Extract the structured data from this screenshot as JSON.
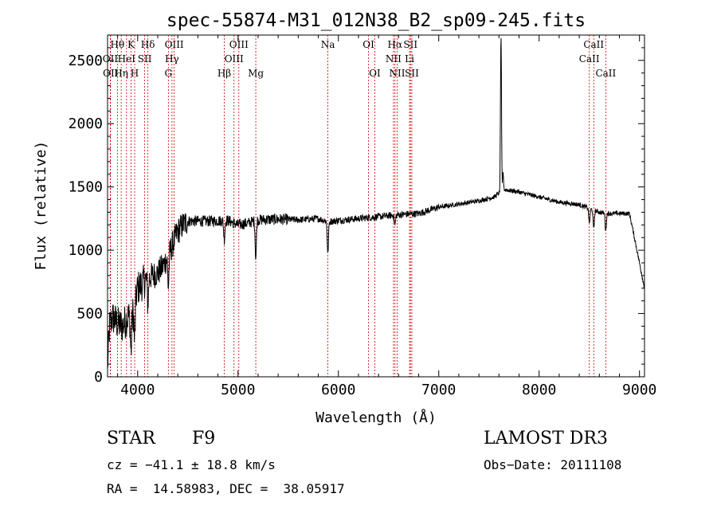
{
  "chart_data": {
    "type": "line",
    "title": "spec-55874-M31_012N38_B2_sp09-245.fits",
    "xlabel": "Wavelength (Å)",
    "ylabel": "Flux (relative)",
    "xlim": [
      3700,
      9050
    ],
    "ylim": [
      0,
      2700
    ],
    "xticks": [
      4000,
      5000,
      6000,
      7000,
      8000,
      9000
    ],
    "yticks": [
      0,
      500,
      1000,
      1500,
      2000,
      2500
    ],
    "xtick_labels": [
      "4000",
      "5000",
      "6000",
      "7000",
      "8000",
      "9000"
    ],
    "ytick_labels": [
      "0",
      "500",
      "1000",
      "1500",
      "2000",
      "2500"
    ],
    "grid": false,
    "line_color": "#000000",
    "marker_color": "#cc0000",
    "lines": [
      {
        "label": "Hθ",
        "x": 3798,
        "row": 0
      },
      {
        "label": "K",
        "x": 3934,
        "row": 0
      },
      {
        "label": "Hδ",
        "x": 4102,
        "row": 0
      },
      {
        "label": "OIII",
        "x": 4364,
        "row": 0
      },
      {
        "label": "OIII",
        "x": 5008,
        "row": 0
      },
      {
        "label": "OI",
        "x": 6300,
        "row": 0
      },
      {
        "label": "Hα",
        "x": 6564,
        "row": 0
      },
      {
        "label": "SII",
        "x": 6718,
        "row": 0
      },
      {
        "label": "CaII",
        "x": 8544,
        "row": 0
      },
      {
        "label": "OII",
        "x": 3727,
        "row": 1
      },
      {
        "label": "HeI",
        "x": 3889,
        "row": 1
      },
      {
        "label": "SII",
        "x": 4070,
        "row": 1
      },
      {
        "label": "Hγ",
        "x": 4342,
        "row": 1
      },
      {
        "label": "OIII",
        "x": 4960,
        "row": 1
      },
      {
        "label": "NII",
        "x": 6549,
        "row": 1
      },
      {
        "label": "Li",
        "x": 6709,
        "row": 1
      },
      {
        "label": "CaII",
        "x": 8500,
        "row": 1
      },
      {
        "label": "OII",
        "x": 3730,
        "row": 2
      },
      {
        "label": "Hη",
        "x": 3836,
        "row": 2
      },
      {
        "label": "H",
        "x": 3970,
        "row": 2
      },
      {
        "label": "G",
        "x": 4306,
        "row": 2
      },
      {
        "label": "Hβ",
        "x": 4863,
        "row": 2
      },
      {
        "label": "Mg",
        "x": 5177,
        "row": 2
      },
      {
        "label": "Na",
        "x": 5895,
        "row": 0
      },
      {
        "label": "OI",
        "x": 6363,
        "row": 2
      },
      {
        "label": "NII",
        "x": 6585,
        "row": 2
      },
      {
        "label": "SII",
        "x": 6732,
        "row": 2
      },
      {
        "label": "CaII",
        "x": 8664,
        "row": 2
      }
    ],
    "spectrum_anchors": [
      [
        3700,
        80
      ],
      [
        3720,
        400
      ],
      [
        3750,
        470
      ],
      [
        3800,
        420
      ],
      [
        3850,
        400
      ],
      [
        3900,
        470
      ],
      [
        3950,
        500
      ],
      [
        4000,
        700
      ],
      [
        4050,
        740
      ],
      [
        4100,
        780
      ],
      [
        4150,
        800
      ],
      [
        4200,
        820
      ],
      [
        4250,
        870
      ],
      [
        4300,
        950
      ],
      [
        4350,
        1050
      ],
      [
        4400,
        1150
      ],
      [
        4450,
        1200
      ],
      [
        4500,
        1230
      ],
      [
        4700,
        1230
      ],
      [
        4900,
        1235
      ],
      [
        5000,
        1200
      ],
      [
        5100,
        1215
      ],
      [
        5200,
        1240
      ],
      [
        5400,
        1245
      ],
      [
        5600,
        1240
      ],
      [
        5800,
        1250
      ],
      [
        5900,
        1225
      ],
      [
        6000,
        1235
      ],
      [
        6200,
        1250
      ],
      [
        6400,
        1265
      ],
      [
        6600,
        1280
      ],
      [
        6800,
        1290
      ],
      [
        7000,
        1340
      ],
      [
        7200,
        1365
      ],
      [
        7400,
        1390
      ],
      [
        7550,
        1420
      ],
      [
        7650,
        1480
      ],
      [
        7800,
        1460
      ],
      [
        8000,
        1420
      ],
      [
        8200,
        1380
      ],
      [
        8400,
        1360
      ],
      [
        8500,
        1330
      ],
      [
        8600,
        1300
      ],
      [
        8700,
        1290
      ],
      [
        8900,
        1290
      ],
      [
        8950,
        1100
      ],
      [
        9000,
        900
      ],
      [
        9050,
        700
      ]
    ],
    "spectrum_dips": [
      [
        3934,
        300
      ],
      [
        3970,
        300
      ],
      [
        4102,
        200
      ],
      [
        4306,
        250
      ],
      [
        4863,
        150
      ],
      [
        5177,
        300
      ],
      [
        5895,
        260
      ],
      [
        6563,
        80
      ],
      [
        8500,
        120
      ],
      [
        8544,
        150
      ],
      [
        8664,
        140
      ]
    ],
    "spectrum_spikes": [
      [
        7620,
        2700
      ],
      [
        7640,
        1620
      ]
    ]
  },
  "info": {
    "object_type": "STAR",
    "spectral_class": "F9",
    "survey": "LAMOST DR3",
    "velocity": "cz = −41.1 ± 18.8 km/s",
    "obs_date": "Obs−Date: 20111108",
    "coords": "RA =  14.58983, DEC =  38.05917"
  }
}
